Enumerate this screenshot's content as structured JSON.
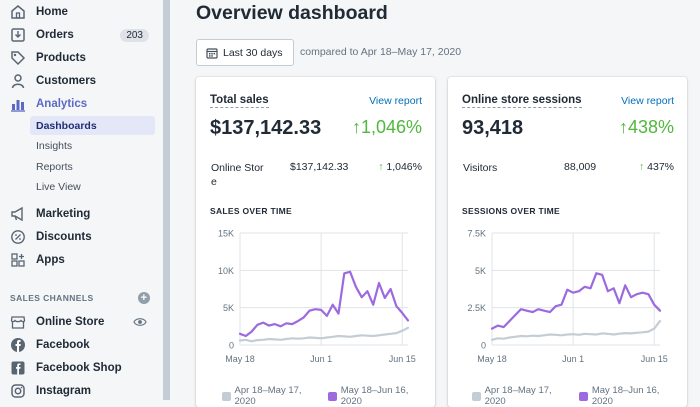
{
  "nav": {
    "items": [
      {
        "label": "Home",
        "icon": "home-icon"
      },
      {
        "label": "Orders",
        "icon": "orders-icon",
        "badge": "203"
      },
      {
        "label": "Products",
        "icon": "tag-icon"
      },
      {
        "label": "Customers",
        "icon": "person-icon"
      },
      {
        "label": "Analytics",
        "icon": "bar-chart-icon"
      }
    ],
    "analytics_sub": [
      "Dashboards",
      "Insights",
      "Reports",
      "Live View"
    ],
    "items2": [
      {
        "label": "Marketing",
        "icon": "megaphone-icon"
      },
      {
        "label": "Discounts",
        "icon": "discount-icon"
      },
      {
        "label": "Apps",
        "icon": "apps-icon"
      }
    ],
    "sales_channels_label": "SALES CHANNELS",
    "channels": [
      {
        "label": "Online Store",
        "icon": "store-icon"
      },
      {
        "label": "Facebook",
        "icon": "facebook-icon"
      },
      {
        "label": "Facebook Shop",
        "icon": "facebook-shop-icon"
      },
      {
        "label": "Instagram",
        "icon": "instagram-icon"
      }
    ]
  },
  "header": {
    "title": "Overview dashboard",
    "date_range": "Last 30 days",
    "compared": "compared to Apr 18–May 17, 2020"
  },
  "colors": {
    "accent": "#5c6ac4",
    "current_series": "#9c6ade",
    "previous_series": "#c4cdd5",
    "positive": "#50b83c",
    "link": "#006fbb"
  },
  "cards": [
    {
      "title": "Total sales",
      "view_report": "View report",
      "value": "$137,142.33",
      "change": "1,046%",
      "row": {
        "label": "Online Store",
        "value": "$137,142.33",
        "change": "1,046%"
      },
      "chart_title": "SALES OVER TIME"
    },
    {
      "title": "Online store sessions",
      "view_report": "View report",
      "value": "93,418",
      "change": "438%",
      "row": {
        "label": "Visitors",
        "value": "88,009",
        "change": "437%"
      },
      "chart_title": "SESSIONS OVER TIME"
    }
  ],
  "chart_data": [
    {
      "type": "line",
      "title": "SALES OVER TIME",
      "xlabel": "",
      "ylabel": "",
      "x_ticks": [
        "May 18",
        "Jun 1",
        "Jun 15"
      ],
      "y_ticks": [
        "0",
        "5K",
        "10K",
        "15K"
      ],
      "ylim": [
        0,
        15000
      ],
      "x": [
        1,
        2,
        3,
        4,
        5,
        6,
        7,
        8,
        9,
        10,
        11,
        12,
        13,
        14,
        15,
        16,
        17,
        18,
        19,
        20,
        21,
        22,
        23,
        24,
        25,
        26,
        27,
        28,
        29,
        30
      ],
      "grid": true,
      "legend_position": "bottom",
      "series": [
        {
          "name": "Apr 18–May 17, 2020",
          "values": [
            600,
            700,
            500,
            650,
            700,
            800,
            750,
            700,
            800,
            900,
            850,
            900,
            1000,
            950,
            900,
            1000,
            1100,
            1200,
            1150,
            1100,
            1200,
            1300,
            1250,
            1200,
            1300,
            1400,
            1500,
            1600,
            1900,
            2300
          ]
        },
        {
          "name": "May 18–Jun 16, 2020",
          "values": [
            1500,
            1200,
            1800,
            2700,
            3000,
            2600,
            2800,
            2500,
            2900,
            2800,
            3200,
            3700,
            4600,
            4800,
            4700,
            3900,
            5400,
            4200,
            9600,
            9800,
            7800,
            6400,
            7200,
            5400,
            8300,
            6300,
            7500,
            5200,
            4300,
            3300
          ]
        }
      ]
    },
    {
      "type": "line",
      "title": "SESSIONS OVER TIME",
      "xlabel": "",
      "ylabel": "",
      "x_ticks": [
        "May 18",
        "Jun 1",
        "Jun 15"
      ],
      "y_ticks": [
        "0",
        "2.5K",
        "5K",
        "7.5K"
      ],
      "ylim": [
        0,
        7500
      ],
      "x": [
        1,
        2,
        3,
        4,
        5,
        6,
        7,
        8,
        9,
        10,
        11,
        12,
        13,
        14,
        15,
        16,
        17,
        18,
        19,
        20,
        21,
        22,
        23,
        24,
        25,
        26,
        27,
        28,
        29,
        30
      ],
      "grid": true,
      "legend_position": "bottom",
      "series": [
        {
          "name": "Apr 18–May 17, 2020",
          "values": [
            350,
            450,
            420,
            500,
            550,
            600,
            580,
            620,
            600,
            650,
            700,
            680,
            650,
            700,
            720,
            680,
            750,
            720,
            700,
            780,
            750,
            700,
            760,
            800,
            780,
            820,
            850,
            900,
            1100,
            1600
          ]
        },
        {
          "name": "May 18–Jun 16, 2020",
          "values": [
            1100,
            1300,
            1200,
            1600,
            2000,
            2400,
            2300,
            2200,
            2400,
            2300,
            2200,
            2600,
            2700,
            3700,
            3500,
            3600,
            3900,
            3800,
            4800,
            4700,
            3600,
            3800,
            2800,
            4000,
            3200,
            3400,
            3500,
            3400,
            2700,
            2300
          ]
        }
      ]
    }
  ]
}
